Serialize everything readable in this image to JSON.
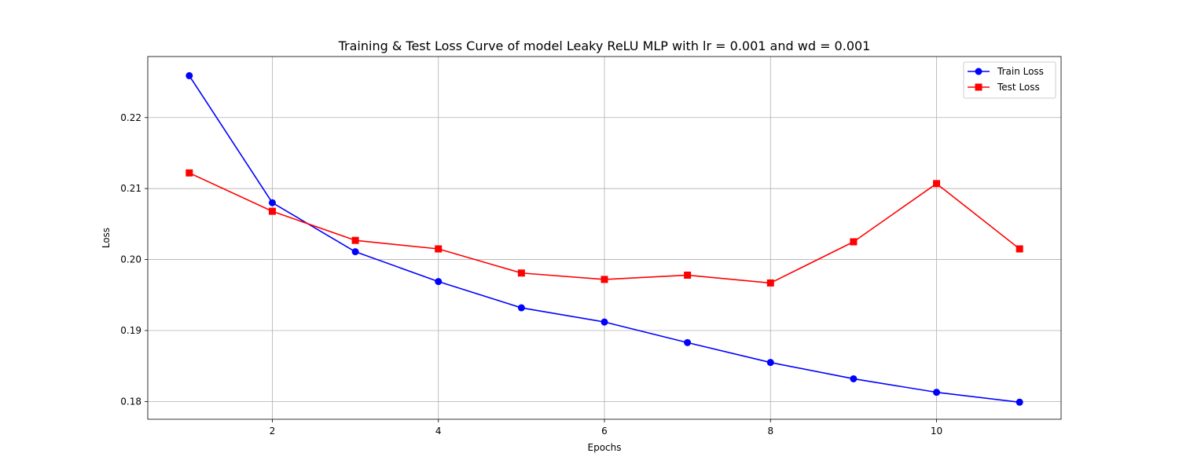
{
  "chart_data": {
    "type": "line",
    "title": "Training & Test Loss Curve of model Leaky ReLU MLP with lr = 0.001 and wd = 0.001",
    "xlabel": "Epochs",
    "ylabel": "Loss",
    "x": [
      1,
      2,
      3,
      4,
      5,
      6,
      7,
      8,
      9,
      10,
      11
    ],
    "xlim": [
      0.5,
      11.5
    ],
    "ylim": [
      0.1775,
      0.2286
    ],
    "xticks": [
      2,
      4,
      6,
      8,
      10
    ],
    "yticks": [
      0.18,
      0.19,
      0.2,
      0.21,
      0.22
    ],
    "ytick_labels": [
      "0.18",
      "0.19",
      "0.20",
      "0.21",
      "0.22"
    ],
    "grid": true,
    "legend_position": "upper right",
    "series": [
      {
        "name": "Train Loss",
        "color": "#0000ff",
        "marker": "circle",
        "values": [
          0.2259,
          0.208,
          0.2011,
          0.1969,
          0.1932,
          0.1912,
          0.1883,
          0.1855,
          0.1832,
          0.1813,
          0.1799
        ]
      },
      {
        "name": "Test Loss",
        "color": "#ff0000",
        "marker": "square",
        "values": [
          0.2122,
          0.2068,
          0.2027,
          0.2015,
          0.1981,
          0.1972,
          0.1978,
          0.1967,
          0.2025,
          0.2107,
          0.2015
        ]
      }
    ]
  }
}
